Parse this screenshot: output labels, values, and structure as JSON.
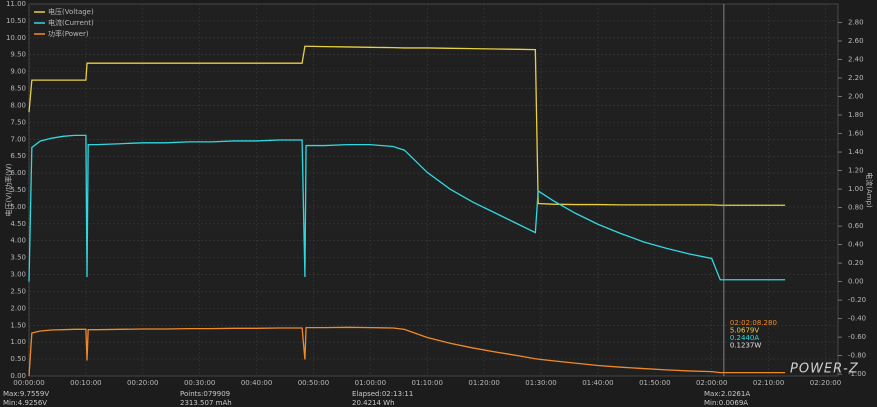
{
  "chart_data": {
    "type": "line",
    "y_label": "电压(V)/功率(W)",
    "y2_label": "电流(Amp)",
    "x": [
      0,
      0.5,
      2,
      4,
      6,
      8,
      10,
      10.2,
      10.4,
      12,
      16,
      20,
      24,
      28,
      32,
      36,
      40,
      44,
      48,
      48.5,
      48.7,
      52,
      56,
      60,
      64,
      66,
      70,
      74,
      78,
      82,
      86,
      89,
      89.5,
      92,
      96,
      100,
      104,
      108,
      112,
      116,
      120,
      121.5,
      125,
      129,
      132.9
    ],
    "series": [
      {
        "name": "电压(Voltage)",
        "color": "#e8d040",
        "values": [
          7.8,
          8.75,
          8.75,
          8.75,
          8.75,
          8.75,
          8.75,
          9.25,
          9.25,
          9.25,
          9.25,
          9.25,
          9.25,
          9.25,
          9.25,
          9.25,
          9.25,
          9.25,
          9.25,
          9.75,
          9.75,
          9.74,
          9.73,
          9.72,
          9.71,
          9.7,
          9.7,
          9.69,
          9.68,
          9.67,
          9.66,
          9.65,
          5.1,
          5.08,
          5.07,
          5.07,
          5.06,
          5.06,
          5.06,
          5.06,
          5.06,
          5.05,
          5.05,
          5.05,
          5.05
        ]
      },
      {
        "name": "电流(Current)",
        "color": "#30d8e0",
        "axis": "y2",
        "values": [
          0.0,
          1.45,
          1.52,
          1.55,
          1.57,
          1.58,
          1.58,
          0.05,
          1.48,
          1.48,
          1.49,
          1.5,
          1.5,
          1.51,
          1.51,
          1.52,
          1.52,
          1.53,
          1.53,
          0.05,
          1.47,
          1.47,
          1.48,
          1.48,
          1.46,
          1.42,
          1.18,
          1.0,
          0.86,
          0.74,
          0.62,
          0.53,
          0.98,
          0.88,
          0.74,
          0.62,
          0.52,
          0.43,
          0.36,
          0.3,
          0.25,
          0.02,
          0.02,
          0.02,
          0.02
        ]
      },
      {
        "name": "功率(Power)",
        "color": "#f08a28",
        "values": [
          0.0,
          1.27,
          1.33,
          1.36,
          1.37,
          1.38,
          1.38,
          0.46,
          1.37,
          1.37,
          1.38,
          1.39,
          1.39,
          1.4,
          1.4,
          1.41,
          1.41,
          1.42,
          1.42,
          0.49,
          1.43,
          1.43,
          1.44,
          1.43,
          1.42,
          1.38,
          1.14,
          0.97,
          0.83,
          0.71,
          0.6,
          0.51,
          0.5,
          0.45,
          0.38,
          0.31,
          0.26,
          0.22,
          0.18,
          0.15,
          0.13,
          0.1,
          0.1,
          0.1,
          0.1
        ]
      }
    ],
    "xlim": [
      0,
      142.2
    ],
    "ylim": [
      0,
      11.0
    ],
    "y2lim": [
      -1.02,
      3.0
    ],
    "xticks": [
      {
        "value": 0,
        "label": "00:00:00"
      },
      {
        "value": 10,
        "label": "00:10:00"
      },
      {
        "value": 20,
        "label": "00:20:00"
      },
      {
        "value": 30,
        "label": "00:30:00"
      },
      {
        "value": 40,
        "label": "00:40:00"
      },
      {
        "value": 50,
        "label": "00:50:00"
      },
      {
        "value": 60,
        "label": "01:00:00"
      },
      {
        "value": 70,
        "label": "01:10:00"
      },
      {
        "value": 80,
        "label": "01:20:00"
      },
      {
        "value": 90,
        "label": "01:30:00"
      },
      {
        "value": 100,
        "label": "01:40:00"
      },
      {
        "value": 110,
        "label": "01:50:00"
      },
      {
        "value": 120,
        "label": "02:00:00"
      },
      {
        "value": 130,
        "label": "02:10:00"
      },
      {
        "value": 140,
        "label": "02:20:00"
      }
    ],
    "yticks": [
      {
        "value": 0,
        "label": "0.00"
      },
      {
        "value": 0.5,
        "label": "0.50"
      },
      {
        "value": 1,
        "label": "1.00"
      },
      {
        "value": 1.5,
        "label": "1.50"
      },
      {
        "value": 2,
        "label": "2.00"
      },
      {
        "value": 2.5,
        "label": "2.50"
      },
      {
        "value": 3,
        "label": "3.00"
      },
      {
        "value": 3.5,
        "label": "3.50"
      },
      {
        "value": 4,
        "label": "4.00"
      },
      {
        "value": 4.5,
        "label": "4.50"
      },
      {
        "value": 5,
        "label": "5.00"
      },
      {
        "value": 5.5,
        "label": "5.50"
      },
      {
        "value": 6,
        "label": "6.00"
      },
      {
        "value": 6.5,
        "label": "6.50"
      },
      {
        "value": 7,
        "label": "7.00"
      },
      {
        "value": 7.5,
        "label": "7.50"
      },
      {
        "value": 8,
        "label": "8.00"
      },
      {
        "value": 8.5,
        "label": "8.50"
      },
      {
        "value": 9,
        "label": "9.00"
      },
      {
        "value": 9.5,
        "label": "9.50"
      },
      {
        "value": 10,
        "label": "10.00"
      },
      {
        "value": 10.5,
        "label": "10.50"
      },
      {
        "value": 11,
        "label": "11.00"
      }
    ],
    "y2ticks": [
      {
        "value": -1,
        "label": "-1.00"
      },
      {
        "value": -0.8,
        "label": "-0.80"
      },
      {
        "value": -0.6,
        "label": "-0.60"
      },
      {
        "value": -0.4,
        "label": "-0.40"
      },
      {
        "value": -0.2,
        "label": "-0.20"
      },
      {
        "value": 0,
        "label": "0.00"
      },
      {
        "value": 0.2,
        "label": "0.20"
      },
      {
        "value": 0.4,
        "label": "0.40"
      },
      {
        "value": 0.6,
        "label": "0.60"
      },
      {
        "value": 0.8,
        "label": "0.80"
      },
      {
        "value": 1,
        "label": "1.00"
      },
      {
        "value": 1.2,
        "label": "1.20"
      },
      {
        "value": 1.4,
        "label": "1.40"
      },
      {
        "value": 1.6,
        "label": "1.60"
      },
      {
        "value": 1.8,
        "label": "1.80"
      },
      {
        "value": 2,
        "label": "2.00"
      },
      {
        "value": 2.2,
        "label": "2.20"
      },
      {
        "value": 2.4,
        "label": "2.40"
      },
      {
        "value": 2.6,
        "label": "2.60"
      },
      {
        "value": 2.8,
        "label": "2.80"
      }
    ],
    "grid": true,
    "legend": "top-left",
    "cursor": {
      "x": 122.14,
      "time": "02:02:08.280",
      "voltage": "5.0679V",
      "current": "0.2440A",
      "power": "0.1237W"
    },
    "stats": {
      "voltage_max": "Max:9.7559V",
      "voltage_min": "Min:4.9256V",
      "points": "Points:079909",
      "capacity": "2313.507 mAh",
      "elapsed": "Elapsed:02:13:11",
      "energy": "20.4214 Wh",
      "current_max": "Max:2.0261A",
      "current_min": "Min:0.0069A"
    },
    "logo": "POWER-Z"
  }
}
